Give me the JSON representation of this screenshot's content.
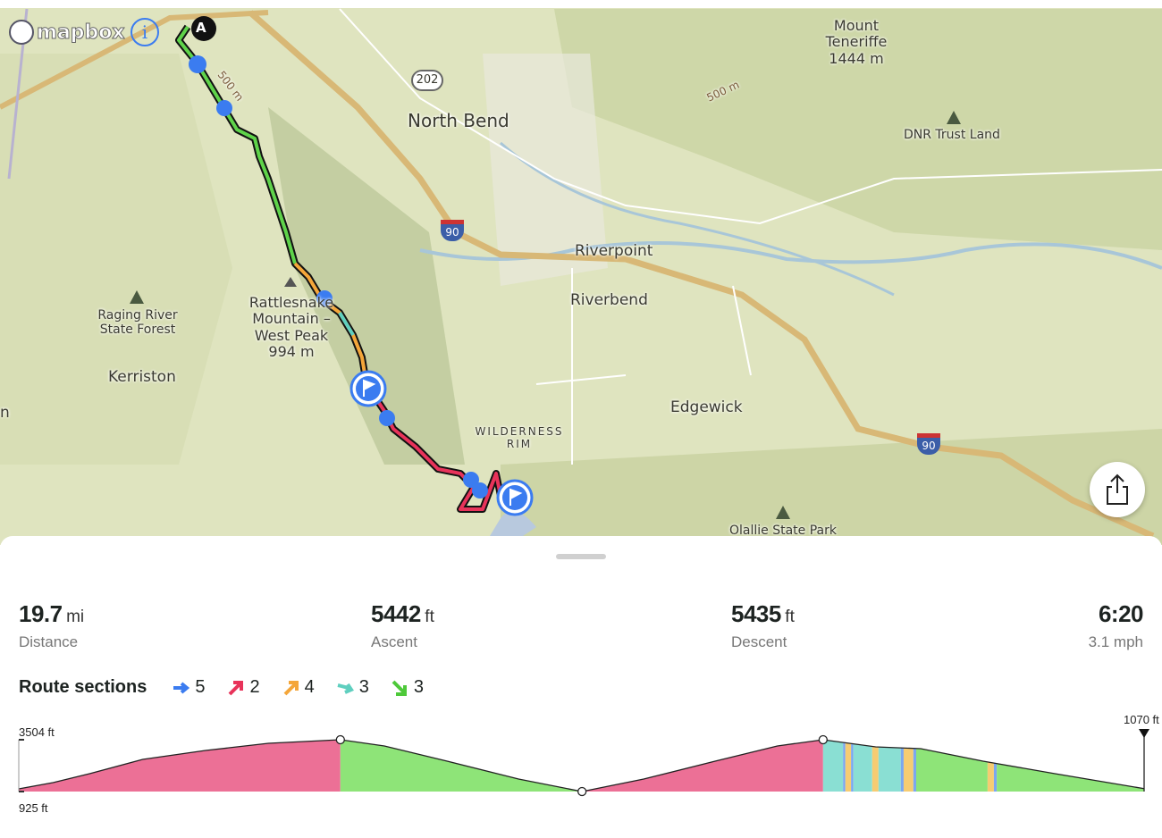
{
  "map": {
    "attribution": "mapbox",
    "info_icon": "info-icon",
    "start_marker": "A",
    "labels": [
      {
        "id": "north-bend",
        "text": "North Bend"
      },
      {
        "id": "riverpoint",
        "text": "Riverpoint"
      },
      {
        "id": "riverbend",
        "text": "Riverbend"
      },
      {
        "id": "edgewick",
        "text": "Edgewick"
      },
      {
        "id": "kerriston",
        "text": "Kerriston"
      },
      {
        "id": "wilderness-rim",
        "text": "WILDERNESS RIM"
      },
      {
        "id": "raging-river",
        "text": "Raging River State Forest"
      },
      {
        "id": "rattlesnake",
        "text": "Rattlesnake Mountain – West Peak 994 m"
      },
      {
        "id": "teneriffe",
        "text": "Mount Teneriffe 1444 m"
      },
      {
        "id": "dnr",
        "text": "DNR Trust Land"
      },
      {
        "id": "olallie",
        "text": "Olallie State Park"
      },
      {
        "id": "contour1",
        "text": "500 m"
      },
      {
        "id": "contour2",
        "text": "500 m"
      },
      {
        "id": "route202",
        "text": "202"
      },
      {
        "id": "i90a",
        "text": "90"
      },
      {
        "id": "i90b",
        "text": "90"
      },
      {
        "id": "edge",
        "text": "n"
      }
    ],
    "share_icon": "share-icon"
  },
  "stats": {
    "distance": {
      "value": "19.7",
      "unit": "mi",
      "label": "Distance"
    },
    "ascent": {
      "value": "5442",
      "unit": "ft",
      "label": "Ascent"
    },
    "descent": {
      "value": "5435",
      "unit": "ft",
      "label": "Descent"
    },
    "time": {
      "value": "6:20",
      "label": "3.1 mph"
    }
  },
  "route_sections": {
    "title": "Route sections",
    "items": [
      {
        "icon": "arrow-right-icon",
        "color": "#3b7cf0",
        "count": "5"
      },
      {
        "icon": "arrow-up-right-icon",
        "color": "#e8335a",
        "count": "2"
      },
      {
        "icon": "arrow-up-right-icon",
        "color": "#f4a63a",
        "count": "4"
      },
      {
        "icon": "arrow-right-down-icon",
        "color": "#5fcfbf",
        "count": "3"
      },
      {
        "icon": "arrow-down-right-icon",
        "color": "#4ec93a",
        "count": "3"
      }
    ]
  },
  "elevation": {
    "max_label": "3504 ft",
    "min_label": "925 ft",
    "end_label": "1070 ft",
    "total_mi": 19.7,
    "min_ft": 925,
    "max_ft": 3504,
    "profile": [
      [
        0,
        1058
      ],
      [
        0.6,
        1370
      ],
      [
        1.24,
        1814
      ],
      [
        2.17,
        2526
      ],
      [
        3.27,
        2970
      ],
      [
        4.37,
        3326
      ],
      [
        5.63,
        3504
      ],
      [
        6.4,
        3193
      ],
      [
        7.5,
        2437
      ],
      [
        8.75,
        1548
      ],
      [
        9.86,
        925
      ],
      [
        10.94,
        1548
      ],
      [
        12.19,
        2437
      ],
      [
        13.28,
        3193
      ],
      [
        14.08,
        3504
      ],
      [
        15.0,
        3148
      ],
      [
        15.79,
        3059
      ],
      [
        16.88,
        2437
      ],
      [
        18.14,
        1814
      ],
      [
        19.7,
        1070
      ]
    ],
    "sections": [
      {
        "from": 0,
        "to": 5.63,
        "color": "#ec7096"
      },
      {
        "from": 5.63,
        "to": 9.86,
        "color": "#8ee478"
      },
      {
        "from": 9.86,
        "to": 14.08,
        "color": "#ec7096"
      },
      {
        "from": 14.08,
        "to": 14.43,
        "color": "#8adfd3"
      },
      {
        "from": 14.43,
        "to": 14.47,
        "color": "#7aa7f0"
      },
      {
        "from": 14.47,
        "to": 14.57,
        "color": "#f6cc72"
      },
      {
        "from": 14.57,
        "to": 14.61,
        "color": "#7aa7f0"
      },
      {
        "from": 14.61,
        "to": 14.94,
        "color": "#8adfd3"
      },
      {
        "from": 14.94,
        "to": 15.05,
        "color": "#f6cc72"
      },
      {
        "from": 15.05,
        "to": 15.44,
        "color": "#8adfd3"
      },
      {
        "from": 15.44,
        "to": 15.49,
        "color": "#7aa7f0"
      },
      {
        "from": 15.49,
        "to": 15.66,
        "color": "#f6cc72"
      },
      {
        "from": 15.66,
        "to": 15.71,
        "color": "#7aa7f0"
      },
      {
        "from": 15.71,
        "to": 16.96,
        "color": "#8ee478"
      },
      {
        "from": 16.96,
        "to": 17.07,
        "color": "#f6cc72"
      },
      {
        "from": 17.07,
        "to": 17.12,
        "color": "#7aa7f0"
      },
      {
        "from": 17.12,
        "to": 19.7,
        "color": "#8ee478"
      }
    ],
    "waypoints_mi": [
      5.63,
      9.86,
      14.08
    ]
  }
}
